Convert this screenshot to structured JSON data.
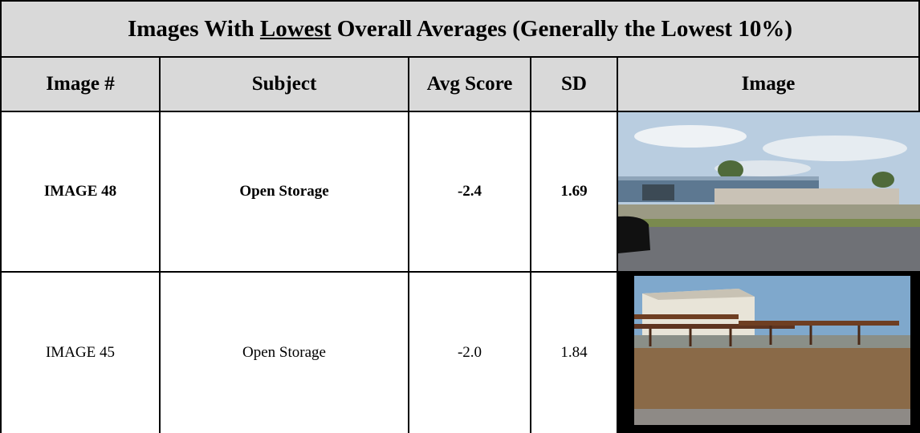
{
  "title": {
    "before": "Images With ",
    "emphasis": "Lowest",
    "after": " Overall Averages (Generally the Lowest 10%)"
  },
  "columns": [
    "Image #",
    "Subject",
    "Avg Score",
    "SD",
    "Image"
  ],
  "rows": [
    [
      "IMAGE 48",
      "Open Storage",
      "-2.4",
      "1.69"
    ],
    [
      "IMAGE 45",
      "Open Storage",
      "-2.0",
      "1.84"
    ]
  ]
}
